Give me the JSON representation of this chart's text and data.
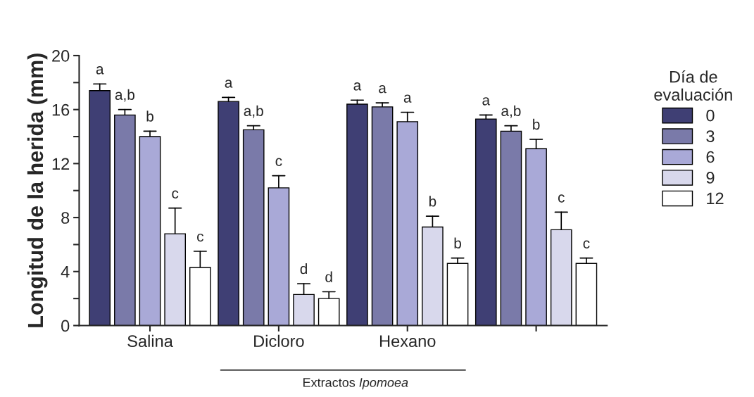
{
  "chart_data": {
    "type": "bar",
    "ylabel": "Longitud de la herida (mm)",
    "legend_title": "Día de evaluación",
    "categories": [
      "Salina",
      "Dicloro",
      "Hexano",
      null
    ],
    "series": [
      {
        "name": "0",
        "color": "#3f3f74",
        "values": [
          17.4,
          16.6,
          16.4,
          15.3
        ],
        "errors": [
          [
            17.4,
            17.9
          ],
          [
            16.6,
            16.9
          ],
          [
            16.4,
            16.7
          ],
          [
            15.3,
            15.6
          ]
        ],
        "value_labels": [
          "a",
          "a",
          "a",
          "a"
        ]
      },
      {
        "name": "3",
        "color": "#7a7aa9",
        "values": [
          15.6,
          14.5,
          16.2,
          14.4
        ],
        "errors": [
          [
            15.6,
            16.0
          ],
          [
            14.5,
            14.8
          ],
          [
            16.2,
            16.5
          ],
          [
            14.4,
            14.8
          ]
        ],
        "value_labels": [
          "a,b",
          "a,b",
          "a",
          "a,b"
        ]
      },
      {
        "name": "6",
        "color": "#a9a9d7",
        "values": [
          14.0,
          10.2,
          15.1,
          13.1
        ],
        "errors": [
          [
            14.0,
            14.4
          ],
          [
            10.2,
            11.1
          ],
          [
            15.1,
            15.8
          ],
          [
            13.1,
            13.8
          ]
        ],
        "value_labels": [
          "b",
          "c",
          "a",
          "b"
        ]
      },
      {
        "name": "9",
        "color": "#d8d8ec",
        "values": [
          6.8,
          2.3,
          7.3,
          7.1
        ],
        "errors": [
          [
            6.8,
            8.7
          ],
          [
            2.3,
            3.1
          ],
          [
            7.3,
            8.1
          ],
          [
            7.1,
            8.4
          ]
        ],
        "value_labels": [
          "c",
          "d",
          "b",
          "c"
        ]
      },
      {
        "name": "12",
        "color": "#ffffff",
        "values": [
          4.3,
          2.0,
          4.6,
          4.6
        ],
        "errors": [
          [
            4.3,
            5.5
          ],
          [
            2.0,
            2.5
          ],
          [
            4.6,
            5.0
          ],
          [
            4.6,
            5.0
          ]
        ],
        "value_labels": [
          "c",
          "d",
          "b",
          "c"
        ]
      }
    ],
    "ylim": [
      0,
      20
    ],
    "yticks": [
      0,
      {
        "value": 2,
        "label": null
      },
      4,
      {
        "value": 6,
        "label": null
      },
      8,
      {
        "value": 10,
        "label": null
      },
      12,
      {
        "value": 14,
        "label": null
      },
      16,
      {
        "value": 18,
        "label": null
      },
      20
    ],
    "grid": false,
    "legend": "top right",
    "annotations": [
      "Extractos Ipomoea"
    ]
  }
}
